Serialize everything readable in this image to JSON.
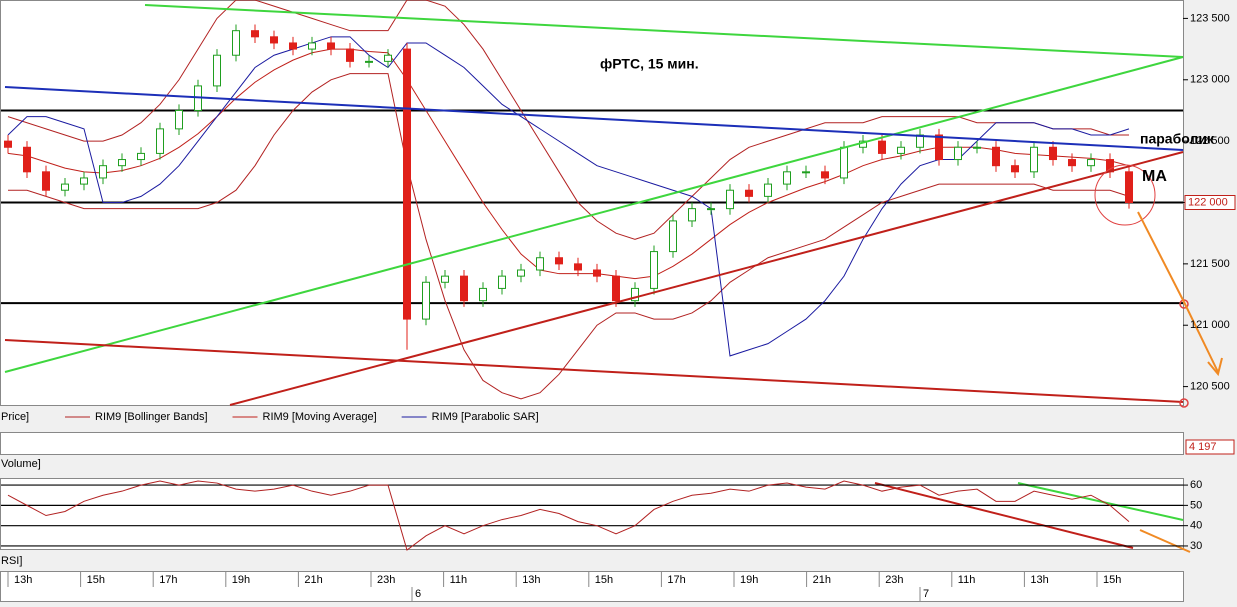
{
  "chart_data": [
    {
      "type": "candlestick",
      "title": "фРТС,  15 мин.",
      "panel_label": "Price]",
      "annotations": [
        "параболик",
        "MA"
      ],
      "open": [
        122500,
        122450,
        122250,
        122100,
        122150,
        122200,
        122300,
        122350,
        122400,
        122600,
        122750,
        122950,
        123200,
        123400,
        123350,
        123300,
        123250,
        123300,
        123250,
        123150,
        123150,
        123250,
        121050,
        121350,
        121400,
        121200,
        121300,
        121400,
        121450,
        121550,
        121500,
        121450,
        121400,
        121200,
        121300,
        121600,
        121850,
        121950,
        121950,
        122100,
        122050,
        122150,
        122250,
        122250,
        122200,
        122450,
        122500,
        122400,
        122450,
        122550,
        122350,
        122450,
        122450,
        122300,
        122250,
        122450,
        122350,
        122300,
        122350,
        122250
      ],
      "high": [
        122550,
        122500,
        122300,
        122200,
        122250,
        122350,
        122400,
        122450,
        122650,
        122800,
        123000,
        123250,
        123450,
        123450,
        123400,
        123350,
        123350,
        123350,
        123300,
        123200,
        123250,
        123300,
        121400,
        121450,
        121450,
        121350,
        121450,
        121500,
        121600,
        121600,
        121550,
        121500,
        121450,
        121350,
        121650,
        121900,
        122000,
        122000,
        122150,
        122150,
        122200,
        122300,
        122300,
        122300,
        122500,
        122550,
        122550,
        122500,
        122600,
        122600,
        122500,
        122500,
        122500,
        122350,
        122500,
        122500,
        122400,
        122400,
        122400,
        122300
      ],
      "low": [
        122400,
        122200,
        122050,
        122050,
        122100,
        122150,
        122250,
        122300,
        122350,
        122550,
        122700,
        122900,
        123150,
        123300,
        123250,
        123200,
        123200,
        123200,
        123100,
        123100,
        123100,
        120800,
        121000,
        121300,
        121150,
        121150,
        121250,
        121350,
        121400,
        121450,
        121400,
        121350,
        121150,
        121150,
        121250,
        121550,
        121800,
        121900,
        121900,
        122000,
        122000,
        122100,
        122200,
        122150,
        122150,
        122400,
        122350,
        122350,
        122400,
        122300,
        122300,
        122400,
        122250,
        122200,
        122200,
        122300,
        122250,
        122250,
        122200,
        121950
      ],
      "close": [
        122450,
        122250,
        122100,
        122150,
        122200,
        122300,
        122350,
        122400,
        122600,
        122750,
        122950,
        123200,
        123400,
        123350,
        123300,
        123250,
        123300,
        123250,
        123150,
        123150,
        123200,
        121050,
        121350,
        121400,
        121200,
        121300,
        121400,
        121450,
        121550,
        121500,
        121450,
        121400,
        121200,
        121300,
        121600,
        121850,
        121950,
        121950,
        122100,
        122050,
        122150,
        122250,
        122250,
        122200,
        122450,
        122500,
        122400,
        122450,
        122550,
        122350,
        122450,
        122450,
        122300,
        122250,
        122450,
        122350,
        122300,
        122350,
        122250,
        122000
      ],
      "up_color": "#1f9e1f",
      "down_color": "#e0201a",
      "series": [
        {
          "name": "RIM9 [Bollinger Bands]",
          "color": "#b22222",
          "upper": [
            122700,
            122650,
            122600,
            122550,
            122500,
            122500,
            122550,
            122650,
            122800,
            123000,
            123250,
            123500,
            123650,
            123650,
            123600,
            123550,
            123500,
            123450,
            123400,
            123400,
            123400,
            123650,
            123650,
            123600,
            123450,
            123250,
            123000,
            122750,
            122500,
            122250,
            122000,
            121850,
            121750,
            121700,
            121750,
            121900,
            122050,
            122200,
            122350,
            122450,
            122500,
            122550,
            122600,
            122650,
            122650,
            122650,
            122700,
            122700,
            122700,
            122700,
            122700,
            122650,
            122650,
            122650,
            122650,
            122600,
            122600,
            122600,
            122550,
            122550
          ],
          "lower": [
            122100,
            122100,
            122050,
            122000,
            121950,
            121950,
            121950,
            121950,
            121950,
            121950,
            121950,
            122000,
            122100,
            122300,
            122550,
            122750,
            122900,
            123000,
            123050,
            123050,
            123050,
            122300,
            121700,
            121200,
            120800,
            120550,
            120450,
            120400,
            120450,
            120600,
            120800,
            121000,
            121100,
            121100,
            121050,
            121050,
            121100,
            121200,
            121350,
            121450,
            121550,
            121600,
            121650,
            121700,
            121800,
            121900,
            122000,
            122050,
            122100,
            122150,
            122150,
            122150,
            122150,
            122150,
            122150,
            122100,
            122100,
            122100,
            122100,
            122050
          ]
        },
        {
          "name": "RIM9 [Moving Average]",
          "color": "#c0201a",
          "values": [
            122400,
            122380,
            122330,
            122280,
            122250,
            122240,
            122260,
            122300,
            122360,
            122450,
            122560,
            122700,
            122850,
            122980,
            123080,
            123160,
            123220,
            123250,
            123250,
            123230,
            123220,
            123000,
            122750,
            122500,
            122250,
            122000,
            121780,
            121580,
            121450,
            121420,
            121420,
            121420,
            121400,
            121380,
            121400,
            121480,
            121580,
            121700,
            121820,
            121920,
            122000,
            122060,
            122120,
            122170,
            122230,
            122300,
            122350,
            122380,
            122420,
            122450,
            122450,
            122450,
            122430,
            122400,
            122390,
            122380,
            122370,
            122360,
            122340,
            122300
          ]
        },
        {
          "name": "RIM9 [Parabolic SAR]",
          "color": "#1a1aa0",
          "values": [
            122550,
            122700,
            122700,
            122650,
            122600,
            122000,
            122000,
            122050,
            122150,
            122300,
            122500,
            122700,
            122900,
            123100,
            123200,
            123250,
            123300,
            123350,
            123350,
            123200,
            123100,
            123300,
            123300,
            123200,
            123100,
            122950,
            122800,
            122700,
            122600,
            122500,
            122400,
            122300,
            122250,
            122200,
            122150,
            122100,
            122050,
            121950,
            120750,
            120800,
            120850,
            120950,
            121050,
            121200,
            121400,
            121700,
            121950,
            122150,
            122300,
            122350,
            122350,
            122500,
            122650,
            122650,
            122650,
            122600,
            122600,
            122550,
            122550,
            122600
          ]
        }
      ],
      "levels": [
        122750,
        122000,
        121180
      ],
      "last_price": {
        "value": 122000,
        "label": "122 000"
      },
      "ylim": [
        120350,
        123650
      ],
      "yticks": [
        {
          "value": 120500,
          "label": "120 500"
        },
        {
          "value": 121000,
          "label": "121 000"
        },
        {
          "value": 121500,
          "label": "121 500"
        },
        {
          "value": 122000,
          "label": "122 000"
        },
        {
          "value": 122500,
          "label": "122 500"
        },
        {
          "value": 123000,
          "label": "123 000"
        },
        {
          "value": 123500,
          "label": "123 500"
        }
      ]
    },
    {
      "type": "volume",
      "panel_label": "Volume]",
      "last_value": {
        "value": 4197,
        "label": "4 197"
      }
    },
    {
      "type": "line",
      "panel_label": "RSI]",
      "color": "#b22222",
      "values": [
        55,
        50,
        45,
        47,
        52,
        55,
        57,
        60,
        62,
        60,
        62,
        61,
        58,
        57,
        58,
        60,
        57,
        55,
        57,
        60,
        60,
        28,
        35,
        40,
        36,
        40,
        43,
        45,
        48,
        46,
        42,
        40,
        36,
        40,
        48,
        52,
        55,
        56,
        58,
        57,
        60,
        61,
        59,
        58,
        62,
        60,
        57,
        59,
        60,
        55,
        57,
        58,
        52,
        52,
        57,
        55,
        53,
        55,
        50,
        42
      ],
      "ylim": [
        28.5,
        63
      ],
      "yticks": [
        30,
        40,
        50,
        60
      ]
    }
  ],
  "time_axis": {
    "labels": [
      "13h",
      "15h",
      "17h",
      "19h",
      "21h",
      "23h",
      "11h",
      "13h",
      "15h",
      "17h",
      "19h",
      "21h",
      "23h",
      "11h",
      "13h",
      "15h"
    ],
    "dates": [
      "6",
      "7"
    ]
  }
}
